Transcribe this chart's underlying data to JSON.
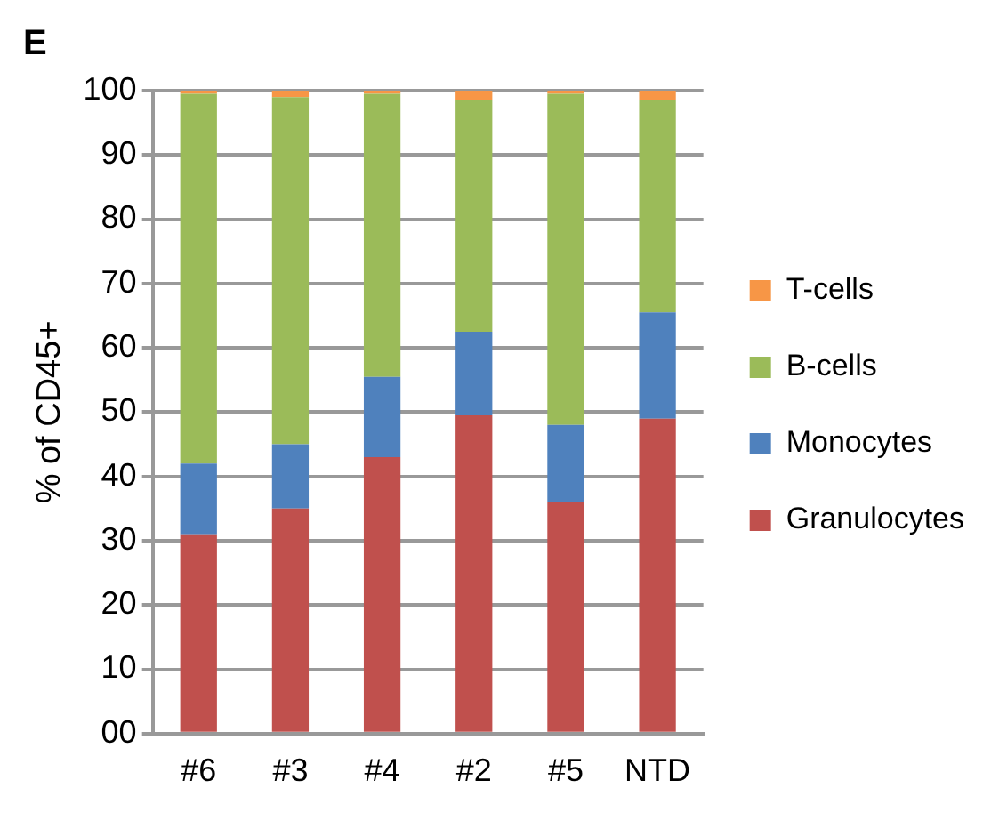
{
  "chart_data": {
    "type": "bar",
    "title": "E",
    "ylabel": "% of CD45+",
    "stacked": true,
    "categories": [
      "#6",
      "#3",
      "#4",
      "#2",
      "#5",
      "NTD"
    ],
    "series": [
      {
        "name": "Granulocytes",
        "color": "#c0504d",
        "values": [
          31,
          35,
          43,
          49.5,
          36,
          49
        ]
      },
      {
        "name": "Monocytes",
        "color": "#4f81bd",
        "values": [
          11,
          10,
          12.5,
          13,
          12,
          16.5
        ]
      },
      {
        "name": "B-cells",
        "color": "#9bbb59",
        "values": [
          57.5,
          54,
          44,
          36,
          51.5,
          33
        ]
      },
      {
        "name": "T-cells",
        "color": "#f79646",
        "values": [
          0.5,
          1,
          0.5,
          1.5,
          0.5,
          1.5
        ]
      }
    ],
    "ylim": [
      0,
      100
    ],
    "yticks": [
      {
        "value": 0,
        "label": "00"
      },
      10,
      20,
      30,
      40,
      50,
      60,
      70,
      80,
      90,
      100
    ],
    "grid": "y",
    "legend": "right"
  }
}
